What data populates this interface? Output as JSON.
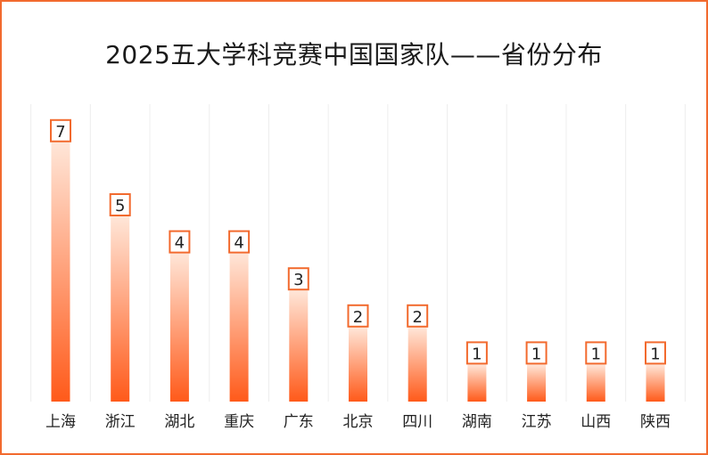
{
  "chart_data": {
    "type": "bar",
    "title": "2025五大学科竞赛中国国家队——省份分布",
    "categories": [
      "上海",
      "浙江",
      "湖北",
      "重庆",
      "广东",
      "北京",
      "四川",
      "湖南",
      "江苏",
      "山西",
      "陕西"
    ],
    "values": [
      7,
      5,
      4,
      4,
      3,
      2,
      2,
      1,
      1,
      1,
      1
    ],
    "ylim": [
      0,
      7
    ],
    "grid": "vertical",
    "colors": {
      "bar_top": "#ffe6d8",
      "bar_bottom": "#ff5a1a",
      "label_border": "#f26a2e",
      "frame": "#f26a2e",
      "grid": "#eeeeee"
    }
  }
}
